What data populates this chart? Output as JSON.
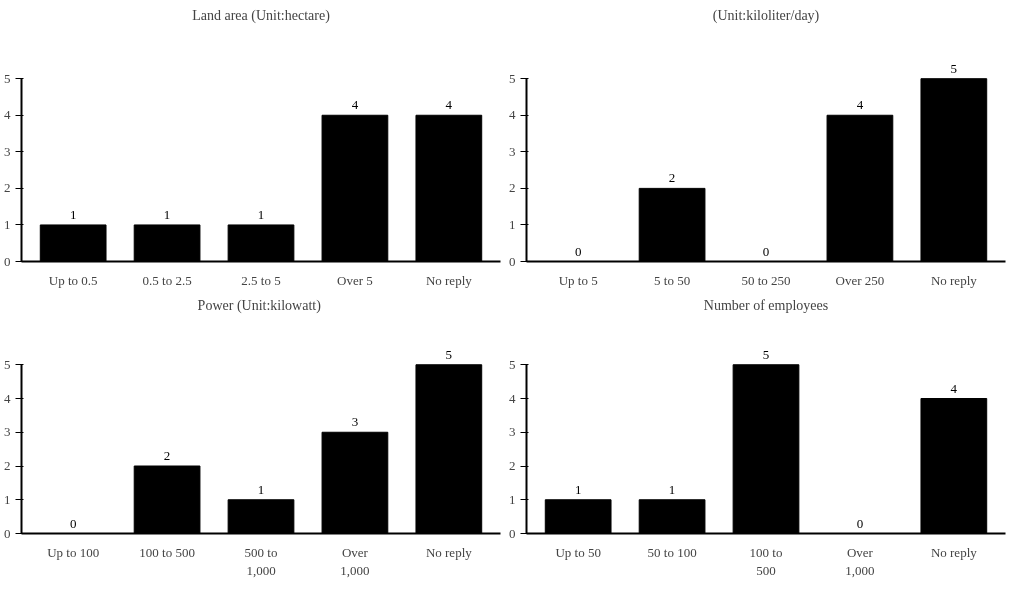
{
  "chart_data": [
    {
      "type": "bar",
      "title": "Land area (Unit:hectare)",
      "categories": [
        "Up to 0.5",
        "0.5 to 2.5",
        "2.5 to 5",
        "Over 5",
        "No reply"
      ],
      "values": [
        1,
        1,
        1,
        4,
        4
      ],
      "color": "#000000",
      "ylim": [
        0,
        5
      ],
      "yticks": [
        0,
        1,
        2,
        3,
        4,
        5
      ],
      "data_labels": true
    },
    {
      "type": "bar",
      "title": "(Unit:kiloliter/day)",
      "categories": [
        "Up to 5",
        "5 to 50",
        "50 to 250",
        "Over 250",
        "No reply"
      ],
      "values": [
        0,
        2,
        0,
        4,
        5
      ],
      "color": "#000000",
      "ylim": [
        0,
        5
      ],
      "yticks": [
        0,
        1,
        2,
        3,
        4,
        5
      ],
      "data_labels": true
    },
    {
      "type": "bar",
      "title": "Power  (Unit:kilowatt)",
      "categories": [
        "Up to 100",
        "100 to 500",
        "500 to\n1,000",
        "Over\n1,000",
        "No reply"
      ],
      "values": [
        0,
        2,
        1,
        3,
        5
      ],
      "color": "#000000",
      "ylim": [
        0,
        5
      ],
      "yticks": [
        0,
        1,
        2,
        3,
        4,
        5
      ],
      "data_labels": true
    },
    {
      "type": "bar",
      "title": "Number of employees",
      "categories": [
        "Up to 50",
        "50 to 100",
        "100 to\n500",
        "Over\n1,000",
        "No reply"
      ],
      "values": [
        1,
        1,
        5,
        0,
        4
      ],
      "color": "#000000",
      "ylim": [
        0,
        5
      ],
      "yticks": [
        0,
        1,
        2,
        3,
        4,
        5
      ],
      "data_labels": true
    }
  ]
}
